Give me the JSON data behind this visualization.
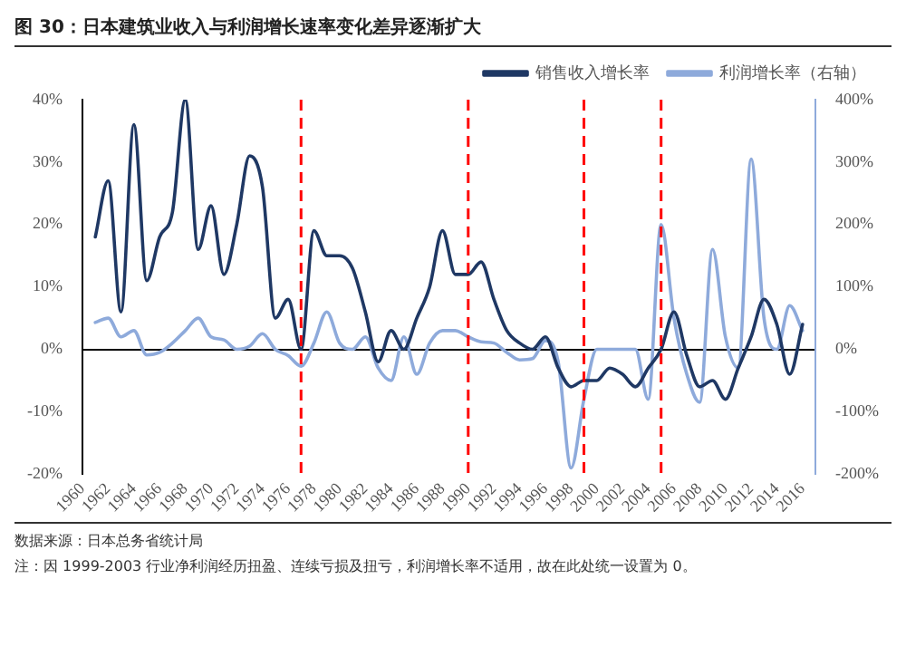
{
  "chart_data": {
    "type": "line",
    "title": "图 30：日本建筑业收入与利润增长速率变化差异逐渐扩大",
    "annotations": [
      "数据来源：日本总务省统计局",
      "注：因 1999-2003 行业净利润经历扭盈、连续亏损及扭亏，利润增长率不适用，故在此处统一设置为 0。"
    ],
    "x": [
      1961,
      1962,
      1963,
      1964,
      1965,
      1966,
      1967,
      1968,
      1969,
      1970,
      1971,
      1972,
      1973,
      1974,
      1975,
      1976,
      1977,
      1978,
      1979,
      1980,
      1981,
      1982,
      1983,
      1984,
      1985,
      1986,
      1987,
      1988,
      1989,
      1990,
      1991,
      1992,
      1993,
      1994,
      1995,
      1996,
      1997,
      1998,
      1999,
      2000,
      2001,
      2002,
      2003,
      2004,
      2005,
      2006,
      2007,
      2008,
      2009,
      2010,
      2011,
      2012,
      2013,
      2014,
      2015,
      2016
    ],
    "series": [
      {
        "name": "销售收入增长率",
        "color": "#1f3864",
        "values": [
          18,
          27,
          6,
          36,
          11,
          18,
          22,
          40,
          16,
          23,
          12,
          20,
          31,
          26,
          5,
          8,
          0,
          19,
          15,
          15,
          13,
          6,
          -2,
          3,
          0,
          5,
          10,
          19,
          12,
          12,
          14,
          8,
          3,
          1,
          0,
          2,
          -3,
          -6,
          -5,
          -5,
          -3,
          -4,
          -6,
          -3,
          0,
          6,
          -1,
          -6,
          -5,
          -8,
          -3,
          2,
          8,
          4,
          -4,
          4
        ]
      },
      {
        "name": "利润增长率（右轴）",
        "color": "#8eaadb",
        "axis": "y2",
        "values": [
          43,
          50,
          20,
          30,
          -9,
          -5,
          10,
          30,
          50,
          20,
          15,
          0,
          5,
          25,
          0,
          -10,
          -27,
          10,
          60,
          10,
          0,
          20,
          -30,
          -50,
          20,
          -40,
          10,
          30,
          30,
          20,
          12,
          10,
          -5,
          -17,
          -15,
          14,
          -20,
          -190,
          -80,
          0,
          0,
          0,
          0,
          -80,
          200,
          50,
          -40,
          -85,
          160,
          20,
          -30,
          305,
          50,
          0,
          70,
          30
        ]
      }
    ],
    "xlim": [
      1960,
      2017
    ],
    "xticks": [
      1960,
      1962,
      1964,
      1966,
      1968,
      1970,
      1972,
      1974,
      1976,
      1978,
      1980,
      1982,
      1984,
      1986,
      1988,
      1990,
      1992,
      1994,
      1996,
      1998,
      2000,
      2002,
      2004,
      2006,
      2008,
      2010,
      2012,
      2014,
      2016
    ],
    "ylim": [
      -20,
      40
    ],
    "yticks": [
      {
        "value": -20,
        "label": "-20%"
      },
      {
        "value": -10,
        "label": "-10%"
      },
      {
        "value": 0,
        "label": "0%"
      },
      {
        "value": 10,
        "label": "10%"
      },
      {
        "value": 20,
        "label": "20%"
      },
      {
        "value": 30,
        "label": "30%"
      },
      {
        "value": 40,
        "label": "40%"
      }
    ],
    "y2lim": [
      -200,
      400
    ],
    "y2ticks": [
      {
        "value": -200,
        "label": "-200%"
      },
      {
        "value": -100,
        "label": "-100%"
      },
      {
        "value": 0,
        "label": "0%"
      },
      {
        "value": 100,
        "label": "100%"
      },
      {
        "value": 200,
        "label": "200%"
      },
      {
        "value": 300,
        "label": "300%"
      },
      {
        "value": 400,
        "label": "400%"
      }
    ],
    "ref_lines": [
      {
        "axis": "x",
        "value": 1977,
        "color": "#ff0000",
        "line_style": "dashed"
      },
      {
        "axis": "x",
        "value": 1990,
        "color": "#ff0000",
        "line_style": "dashed"
      },
      {
        "axis": "x",
        "value": 1999,
        "color": "#ff0000",
        "line_style": "dashed"
      },
      {
        "axis": "x",
        "value": 2005,
        "color": "#ff0000",
        "line_style": "dashed"
      }
    ],
    "grid": false,
    "legend": "top",
    "marker": "none",
    "line_style": "solid"
  }
}
